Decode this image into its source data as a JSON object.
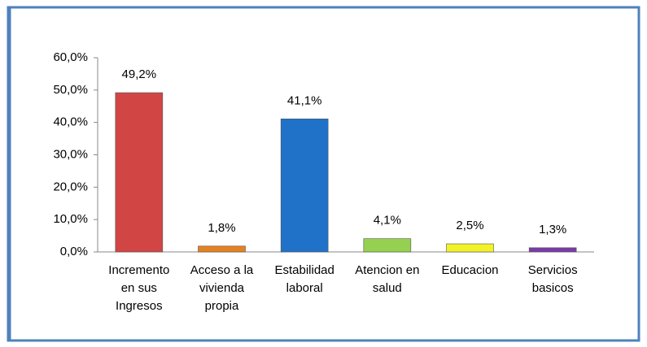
{
  "chart_data": {
    "type": "bar",
    "categories": [
      [
        "Incremento",
        "en sus",
        "Ingresos"
      ],
      [
        "Acceso a la",
        "vivienda",
        "propia"
      ],
      [
        "Estabilidad",
        "laboral"
      ],
      [
        "Atencion en",
        "salud"
      ],
      [
        "Educacion"
      ],
      [
        "Servicios",
        "basicos"
      ]
    ],
    "values": [
      49.2,
      1.8,
      41.1,
      4.1,
      2.5,
      1.3
    ],
    "value_labels": [
      "49,2%",
      "1,8%",
      "41,1%",
      "4,1%",
      "2,5%",
      "1,3%"
    ],
    "colors": [
      "#d24545",
      "#e5821f",
      "#1f72c8",
      "#96d050",
      "#f2f22a",
      "#7a3aa8"
    ],
    "ylim": [
      0,
      60
    ],
    "yticks": [
      {
        "value": 0,
        "label": "0,0%"
      },
      {
        "value": 10,
        "label": "10,0%"
      },
      {
        "value": 20,
        "label": "20,0%"
      },
      {
        "value": 30,
        "label": "30,0%"
      },
      {
        "value": 40,
        "label": "40,0%"
      },
      {
        "value": 50,
        "label": "50,0%"
      },
      {
        "value": 60,
        "label": "60,0%"
      }
    ],
    "grid": false
  }
}
